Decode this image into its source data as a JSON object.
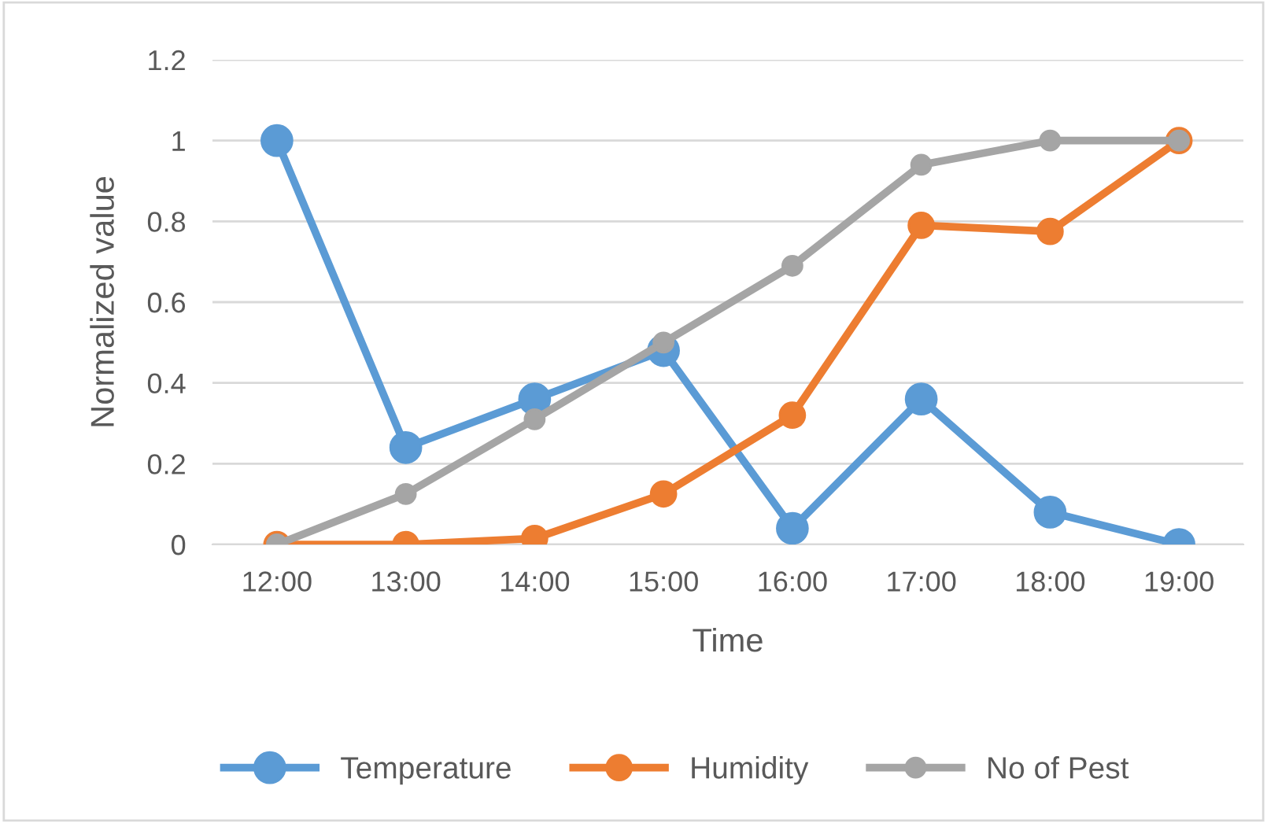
{
  "chart_data": {
    "type": "line",
    "xlabel": "Time",
    "ylabel": "Normalized value",
    "categories": [
      "12:00",
      "13:00",
      "14:00",
      "15:00",
      "16:00",
      "17:00",
      "18:00",
      "19:00"
    ],
    "series": [
      {
        "name": "Temperature",
        "color": "#5b9bd5",
        "values": [
          1,
          0.24,
          0.36,
          0.48,
          0.04,
          0.36,
          0.08,
          0
        ]
      },
      {
        "name": "Humidity",
        "color": "#ed7d31",
        "values": [
          0,
          0,
          0.015,
          0.125,
          0.32,
          0.79,
          0.775,
          1
        ]
      },
      {
        "name": "No of Pest",
        "color": "#a5a5a5",
        "values": [
          0,
          0.125,
          0.31,
          0.5,
          0.69,
          0.94,
          1,
          1
        ]
      }
    ],
    "ylim": [
      0,
      1.2
    ],
    "yticks": [
      0,
      0.2,
      0.4,
      0.6,
      0.8,
      1,
      1.2
    ],
    "grid": "y",
    "legend": "bottom",
    "marker": "circle",
    "line_style": "solid"
  }
}
